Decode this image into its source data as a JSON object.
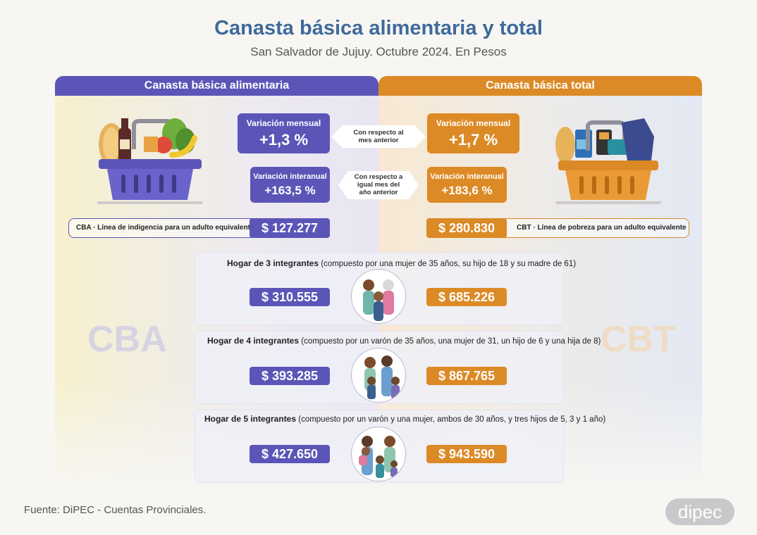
{
  "header": {
    "title": "Canasta básica alimentaria y total",
    "subtitle": "San Salvador de Jujuy. Octubre 2024. En Pesos"
  },
  "cba": {
    "tab_label": "Canasta básica alimentaria",
    "monthly_label": "Variación mensual",
    "monthly_value": "+1,3 %",
    "annual_label": "Variación interanual",
    "annual_value": "+163,5 %",
    "line_label": "CBA · Línea de indigencia para un adulto equivalente",
    "line_value": "$ 127.277",
    "watermark": "CBA"
  },
  "cbt": {
    "tab_label": "Canasta básica total",
    "monthly_label": "Variación mensual",
    "monthly_value": "+1,7 %",
    "annual_label": "Variación interanual",
    "annual_value": "+183,6 %",
    "line_label": "CBT · Línea de pobreza para un adulto equivalente",
    "line_value": "$ 280.830",
    "watermark": "CBT"
  },
  "arrows": {
    "monthly": [
      "Con respecto al",
      "mes anterior"
    ],
    "annual": [
      "Con respecto a",
      "igual mes del",
      "año anterior"
    ]
  },
  "households": [
    {
      "title": "Hogar de 3 integrantes",
      "detail": "(compuesto por una mujer de 35 años, su hijo de 18 y su madre de 61)",
      "cba": "$ 310.555",
      "cbt": "$ 685.226"
    },
    {
      "title": "Hogar de 4 integrantes",
      "detail": "(compuesto por un varón de 35 años, una mujer de 31, un hijo de 6 y una hija de 8)",
      "cba": "$ 393.285",
      "cbt": "$ 867.765"
    },
    {
      "title": "Hogar de 5 integrantes",
      "detail": "(compuesto por un varón y una mujer, ambos de 30 años, y tres hijos de 5, 3 y 1 año)",
      "cba": "$ 427.650",
      "cbt": "$ 943.590"
    }
  ],
  "footer": {
    "source": "Fuente: DiPEC - Cuentas Provinciales.",
    "logo": "dipec"
  },
  "colors": {
    "cba": "#5b55b8",
    "cbt": "#dc8a26",
    "title": "#3f6a9a"
  },
  "icons": {
    "cba_basket": "food-basket-icon",
    "cbt_basket": "goods-basket-icon",
    "family": "family-icon"
  }
}
